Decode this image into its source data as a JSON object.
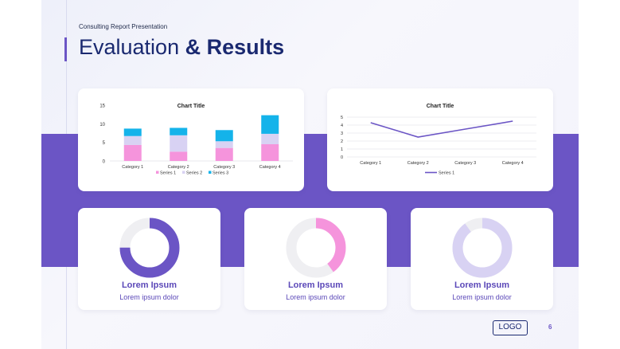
{
  "header": {
    "subtitle": "Consulting Report Presentation",
    "title_plain": "Evaluation ",
    "title_bold": "& Results"
  },
  "colors": {
    "accent": "#6b55c5",
    "navy": "#1a2970",
    "series1": "#f594dc",
    "series2": "#d8d2f3",
    "series3": "#14b3ea",
    "line": "#6b55c5",
    "donut_track": "#efeff2"
  },
  "chart_data": [
    {
      "type": "bar",
      "stacked": true,
      "title": "Chart Title",
      "categories": [
        "Category 1",
        "Category 2",
        "Category 3",
        "Category 4"
      ],
      "series": [
        {
          "name": "Series 1",
          "values": [
            4.3,
            2.5,
            3.5,
            4.5
          ]
        },
        {
          "name": "Series 2",
          "values": [
            2.4,
            4.4,
            1.8,
            2.8
          ]
        },
        {
          "name": "Series 3",
          "values": [
            2.0,
            2.0,
            3.0,
            5.0
          ]
        }
      ],
      "yticks": [
        0,
        5,
        10,
        15
      ],
      "ylim": [
        0,
        15
      ],
      "legend": "bottom",
      "grid": false
    },
    {
      "type": "line",
      "title": "Chart Title",
      "categories": [
        "Category 1",
        "Category 2",
        "Category 3",
        "Category 4"
      ],
      "series": [
        {
          "name": "Series 1",
          "values": [
            4.3,
            2.5,
            3.5,
            4.5
          ]
        }
      ],
      "yticks": [
        0,
        1,
        2,
        3,
        4,
        5
      ],
      "ylim": [
        0,
        5
      ],
      "legend": "bottom",
      "grid": true
    }
  ],
  "donuts": [
    {
      "heading": "Lorem Ipsum",
      "text": "Lorem ipsum dolor",
      "fraction": 0.75,
      "color": "#6b55c5"
    },
    {
      "heading": "Lorem Ipsum",
      "text": "Lorem ipsum dolor",
      "fraction": 0.4,
      "color": "#f594dc"
    },
    {
      "heading": "Lorem Ipsum",
      "text": "Lorem ipsum dolor",
      "fraction": 0.9,
      "color": "#d8d2f3"
    }
  ],
  "footer": {
    "logo": "LOGO",
    "page_number": "6"
  }
}
